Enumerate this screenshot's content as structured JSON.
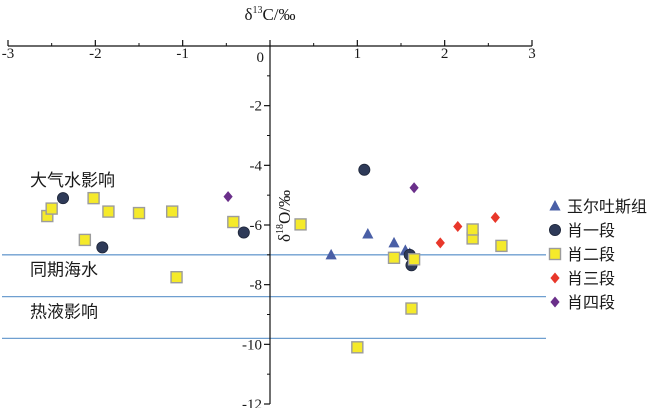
{
  "chart_data": {
    "type": "scatter",
    "xlabel": "δ13C/‰",
    "ylabel": "δ18O/‰",
    "xlim": [
      -3,
      3
    ],
    "ylim": [
      -12,
      0
    ],
    "x_ticks": [
      -3,
      -2,
      -1,
      0,
      1,
      2,
      3
    ],
    "y_ticks": [
      -2,
      -4,
      -6,
      -8,
      -10,
      -12
    ],
    "x_tick_labels": [
      "-3",
      "-2",
      "-1",
      "0",
      "1",
      "2",
      "3"
    ],
    "y_tick_labels": [
      "-2",
      "-4",
      "-6",
      "-8",
      "-10",
      "-12"
    ],
    "zero_label": "0",
    "x_axis_position": "top",
    "legend_position": "right",
    "reference_lines": [
      -7.0,
      -8.4,
      -9.8
    ],
    "zones": [
      {
        "label": "大气水影响",
        "y": -4.7
      },
      {
        "label": "同期海水",
        "y": -7.7
      },
      {
        "label": "热液影响",
        "y": -9.1
      }
    ],
    "series": [
      {
        "name": "玉尔吐斯组",
        "marker": "triangle",
        "color": "#4a5fa6",
        "points": [
          [
            0.7,
            -7.0
          ],
          [
            1.12,
            -6.3
          ],
          [
            1.42,
            -6.6
          ],
          [
            1.55,
            -6.85
          ],
          [
            1.6,
            -6.95
          ]
        ]
      },
      {
        "name": "肖一段",
        "marker": "circle",
        "color": "#2e3a58",
        "points": [
          [
            -2.37,
            -5.1
          ],
          [
            -1.92,
            -6.75
          ],
          [
            -0.3,
            -6.25
          ],
          [
            1.08,
            -4.15
          ],
          [
            1.6,
            -7.0
          ],
          [
            1.62,
            -7.35
          ]
        ]
      },
      {
        "name": "肖二段",
        "marker": "square",
        "color": "#f5ea2a",
        "points": [
          [
            -2.55,
            -5.7
          ],
          [
            -2.5,
            -5.45
          ],
          [
            -2.12,
            -6.5
          ],
          [
            -2.02,
            -5.1
          ],
          [
            -1.85,
            -5.55
          ],
          [
            -1.5,
            -5.6
          ],
          [
            -1.12,
            -5.55
          ],
          [
            -1.07,
            -7.75
          ],
          [
            -0.42,
            -5.9
          ],
          [
            0.35,
            -5.98
          ],
          [
            1.0,
            -10.1
          ],
          [
            1.42,
            -7.1
          ],
          [
            1.62,
            -8.8
          ],
          [
            1.65,
            -7.15
          ],
          [
            2.32,
            -6.45
          ],
          [
            2.32,
            -6.15
          ],
          [
            2.65,
            -6.7
          ]
        ]
      },
      {
        "name": "肖三段",
        "marker": "diamond",
        "color": "#e8372a",
        "points": [
          [
            1.95,
            -6.6
          ],
          [
            2.15,
            -6.05
          ],
          [
            2.58,
            -5.75
          ]
        ]
      },
      {
        "name": "肖四段",
        "marker": "diamond",
        "color": "#6a2f8a",
        "points": [
          [
            -0.48,
            -5.05
          ],
          [
            1.65,
            -4.75
          ]
        ]
      }
    ]
  }
}
